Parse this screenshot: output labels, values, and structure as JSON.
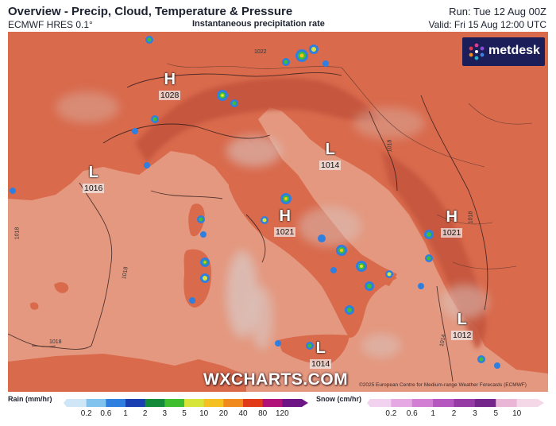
{
  "header": {
    "title": "Overview - Precip, Cloud, Temperature & Pressure",
    "model": "ECMWF HRES 0.1°",
    "subtitle": "Instantaneous precipitation rate",
    "run": "Run: Tue 12 Aug 00Z",
    "valid": "Valid: Fri 15 Aug 12:00 UTC"
  },
  "logo": {
    "text": "metdesk",
    "icon": "metdesk-flower-icon"
  },
  "watermark": "WXCHARTS.COM",
  "copyright": "©2025 European Centre for Medium-range Weather Forecasts (ECMWF)",
  "pressure_centers": [
    {
      "type": "H",
      "value": "1028"
    },
    {
      "type": "L",
      "value": "1016"
    },
    {
      "type": "L",
      "value": "1014"
    },
    {
      "type": "H",
      "value": "1021"
    },
    {
      "type": "H",
      "value": "1021"
    },
    {
      "type": "L",
      "value": "1012"
    },
    {
      "type": "L",
      "value": "1014"
    }
  ],
  "isobar_labels": [
    "1022",
    "1018",
    "1018",
    "1018",
    "1018",
    "1014",
    "1018"
  ],
  "legend": {
    "rain": {
      "title": "Rain (mm/hr)",
      "ticks": [
        "0.2",
        "0.6",
        "1",
        "2",
        "3",
        "5",
        "10",
        "20",
        "40",
        "80",
        "120"
      ],
      "colors": [
        "#cfe6f7",
        "#7fc3ee",
        "#2f7fe0",
        "#1a3fb0",
        "#128a3a",
        "#3fbf2f",
        "#d7e53a",
        "#f5c021",
        "#f08a1e",
        "#e03a18",
        "#b0127a",
        "#6e1585"
      ]
    },
    "snow": {
      "title": "Snow (cm/hr)",
      "ticks": [
        "0.2",
        "0.6",
        "1",
        "2",
        "3",
        "5",
        "10"
      ],
      "colors": [
        "#f2d3ef",
        "#e5a8e2",
        "#d27ed2",
        "#b557bf",
        "#963aa6",
        "#74268a",
        "#e9b6d6",
        "#f5d8e7"
      ]
    }
  },
  "colors": {
    "sea": "#e4987f",
    "land": "#d96a4c",
    "mountain": "#c4553c",
    "cloud": "#d9c8c4",
    "background": "#ffffff"
  }
}
